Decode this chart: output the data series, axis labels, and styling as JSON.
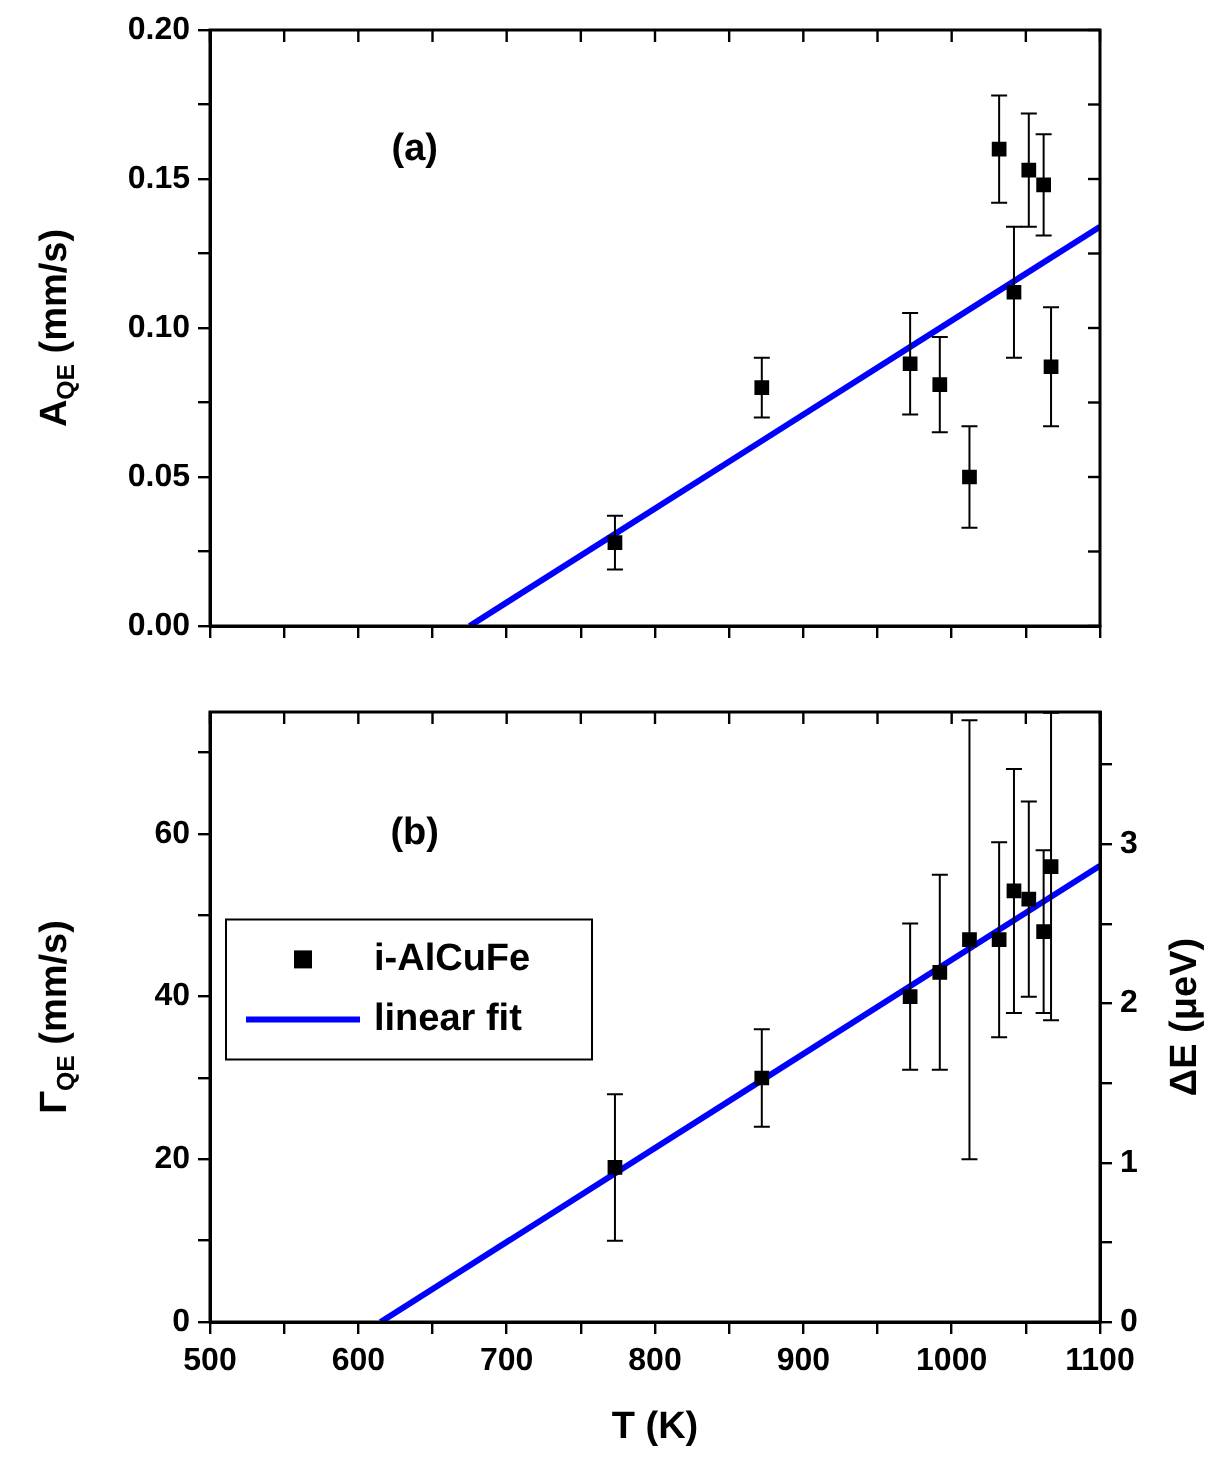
{
  "chart_data": [
    {
      "type": "scatter",
      "ylabel": "A$_{QE}$ (mm/s)",
      "annotations": [
        "(a)"
      ],
      "xlim": [
        500,
        1100
      ],
      "xticks": [
        500,
        {
          "value": 550,
          "label": null
        },
        600,
        {
          "value": 650,
          "label": null
        },
        700,
        {
          "value": 750,
          "label": null
        },
        800,
        {
          "value": 850,
          "label": null
        },
        900,
        {
          "value": 950,
          "label": null
        },
        1000,
        {
          "value": 1050,
          "label": null
        },
        1100
      ],
      "ylim": [
        0,
        0.2
      ],
      "yticks": [
        {
          "value": 0,
          "label": "0.00"
        },
        {
          "value": 0.025,
          "label": null
        },
        {
          "value": 0.05,
          "label": "0.05"
        },
        {
          "value": 0.075,
          "label": null
        },
        {
          "value": 0.1,
          "label": "0.10"
        },
        {
          "value": 0.125,
          "label": null
        },
        {
          "value": 0.15,
          "label": "0.15"
        },
        {
          "value": 0.175,
          "label": null
        },
        {
          "value": 0.2,
          "label": "0.20"
        }
      ],
      "tick_labels": "y",
      "grid": false,
      "legend": false,
      "series": [
        {
          "marker": "square",
          "color": "#000000",
          "x": [
            773,
            872,
            972,
            992,
            1012,
            1032,
            1042,
            1052,
            1062,
            1067
          ],
          "values": [
            0.028,
            0.08,
            0.088,
            0.081,
            0.05,
            0.16,
            0.112,
            0.153,
            0.148,
            0.087
          ],
          "errors": [
            0.009,
            0.01,
            0.017,
            0.016,
            0.017,
            0.018,
            0.022,
            0.019,
            0.017,
            0.02
          ]
        },
        {
          "type": "line",
          "marker": "none",
          "color": "#0000ff",
          "x": [
            675,
            1100
          ],
          "values": [
            0,
            0.134
          ]
        }
      ]
    },
    {
      "type": "scatter",
      "xlabel": "T (K)",
      "ylabel": "Γ$_{QE}$ (mm/s)",
      "y2label": "ΔE (μeV)",
      "annotations": [
        "(b)"
      ],
      "xlim": [
        500,
        1100
      ],
      "xticks": [
        500,
        {
          "value": 550,
          "label": null
        },
        600,
        {
          "value": 650,
          "label": null
        },
        700,
        {
          "value": 750,
          "label": null
        },
        800,
        {
          "value": 850,
          "label": null
        },
        900,
        {
          "value": 950,
          "label": null
        },
        1000,
        {
          "value": 1050,
          "label": null
        },
        1100
      ],
      "ylim": [
        0,
        75
      ],
      "yticks": [
        0,
        {
          "value": 10,
          "label": null
        },
        20,
        {
          "value": 30,
          "label": null
        },
        40,
        {
          "value": 50,
          "label": null
        },
        60,
        {
          "value": 70,
          "label": null
        }
      ],
      "y2lim": [
        0,
        3.83
      ],
      "y2ticks": [
        0,
        {
          "value": 0.5,
          "label": null
        },
        1,
        {
          "value": 1.5,
          "label": null
        },
        2,
        {
          "value": 2.5,
          "label": null
        },
        3,
        {
          "value": 3.5,
          "label": null
        }
      ],
      "grid": false,
      "legend": "left",
      "series": [
        {
          "marker": "square",
          "name": "i-AlCuFe",
          "color": "#000000",
          "x": [
            773,
            872,
            972,
            992,
            1012,
            1032,
            1042,
            1052,
            1062,
            1067
          ],
          "values": [
            19,
            30,
            40,
            43,
            47,
            47,
            53,
            52,
            48,
            56
          ],
          "errors": [
            9,
            6,
            9,
            12,
            27,
            12,
            15,
            12,
            10,
            18.9
          ]
        },
        {
          "type": "line",
          "marker": "none",
          "name": "linear fit",
          "color": "#0000ff",
          "x": [
            615,
            1100
          ],
          "values": [
            0,
            56.1
          ]
        }
      ]
    }
  ]
}
